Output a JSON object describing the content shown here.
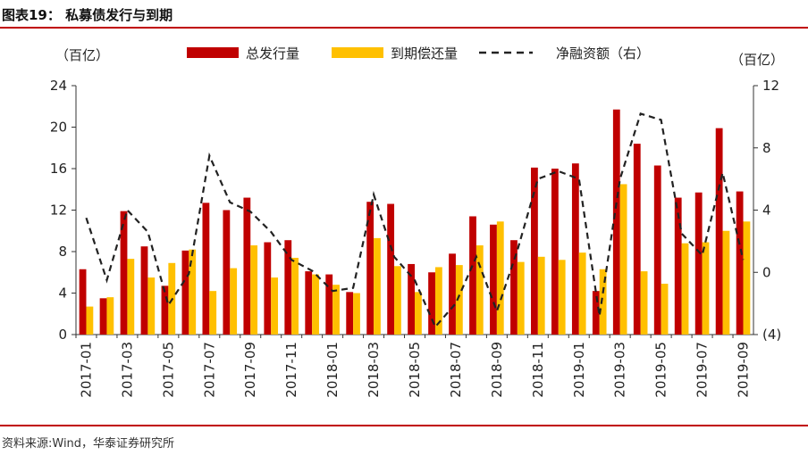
{
  "header": {
    "title": "图表19：  私募债发行与到期"
  },
  "footer": {
    "source": "资料来源:Wind，华泰证券研究所"
  },
  "chart_data": {
    "type": "bar",
    "title": "私募债发行与到期",
    "y_left_label": "（百亿）",
    "y_right_label": "（百亿）",
    "y_left_lim": [
      0,
      24
    ],
    "y_left_ticks": [
      "0",
      "4",
      "8",
      "12",
      "16",
      "20",
      "24"
    ],
    "y_right_lim": [
      -4,
      12
    ],
    "y_right_ticks": [
      "(4)",
      "0",
      "4",
      "8",
      "12"
    ],
    "x_tick_labels": [
      "2017-01",
      "2017-03",
      "2017-05",
      "2017-07",
      "2017-09",
      "2017-11",
      "2018-01",
      "2018-03",
      "2018-05",
      "2018-07",
      "2018-09",
      "2018-11",
      "2019-01",
      "2019-03",
      "2019-05",
      "2019-07",
      "2019-09"
    ],
    "categories": [
      "2017-01",
      "2017-02",
      "2017-03",
      "2017-04",
      "2017-05",
      "2017-06",
      "2017-07",
      "2017-08",
      "2017-09",
      "2017-10",
      "2017-11",
      "2017-12",
      "2018-01",
      "2018-02",
      "2018-03",
      "2018-04",
      "2018-05",
      "2018-06",
      "2018-07",
      "2018-08",
      "2018-09",
      "2018-10",
      "2018-11",
      "2018-12",
      "2019-01",
      "2019-02",
      "2019-03",
      "2019-04",
      "2019-05",
      "2019-06",
      "2019-07",
      "2019-08",
      "2019-09"
    ],
    "series": [
      {
        "name": "总发行量",
        "axis": "left",
        "kind": "bar",
        "color": "#c00000",
        "values": [
          6.3,
          3.5,
          11.9,
          8.5,
          4.7,
          8.1,
          12.7,
          12.0,
          13.2,
          8.9,
          9.1,
          6.1,
          5.8,
          4.1,
          12.8,
          12.6,
          6.8,
          6.0,
          7.8,
          11.4,
          10.6,
          9.1,
          16.1,
          16.0,
          16.5,
          4.2,
          21.7,
          18.4,
          16.3,
          13.2,
          13.7,
          19.9,
          13.8
        ]
      },
      {
        "name": "到期偿还量",
        "axis": "left",
        "kind": "bar",
        "color": "#ffc000",
        "values": [
          2.7,
          3.6,
          7.3,
          5.5,
          6.9,
          8.2,
          4.2,
          6.4,
          8.6,
          5.5,
          7.4,
          5.8,
          4.8,
          4.0,
          9.3,
          6.6,
          4.1,
          6.5,
          6.7,
          8.6,
          10.9,
          7.0,
          7.5,
          7.2,
          7.9,
          6.3,
          14.5,
          6.1,
          4.9,
          8.8,
          8.9,
          10.0,
          10.9
        ]
      },
      {
        "name": "净融资额（右）",
        "axis": "right",
        "kind": "line",
        "color": "#222222",
        "values": [
          3.5,
          -0.5,
          4.0,
          2.6,
          -2.1,
          -0.1,
          7.5,
          4.5,
          3.9,
          2.6,
          0.8,
          0.1,
          -1.2,
          -1.0,
          5.0,
          1.0,
          -0.5,
          -3.5,
          -2.0,
          1.0,
          -2.5,
          1.4,
          6.0,
          6.5,
          6.0,
          -2.8,
          6.0,
          10.2,
          9.8,
          2.5,
          1.1,
          6.4,
          0.8
        ]
      }
    ]
  }
}
